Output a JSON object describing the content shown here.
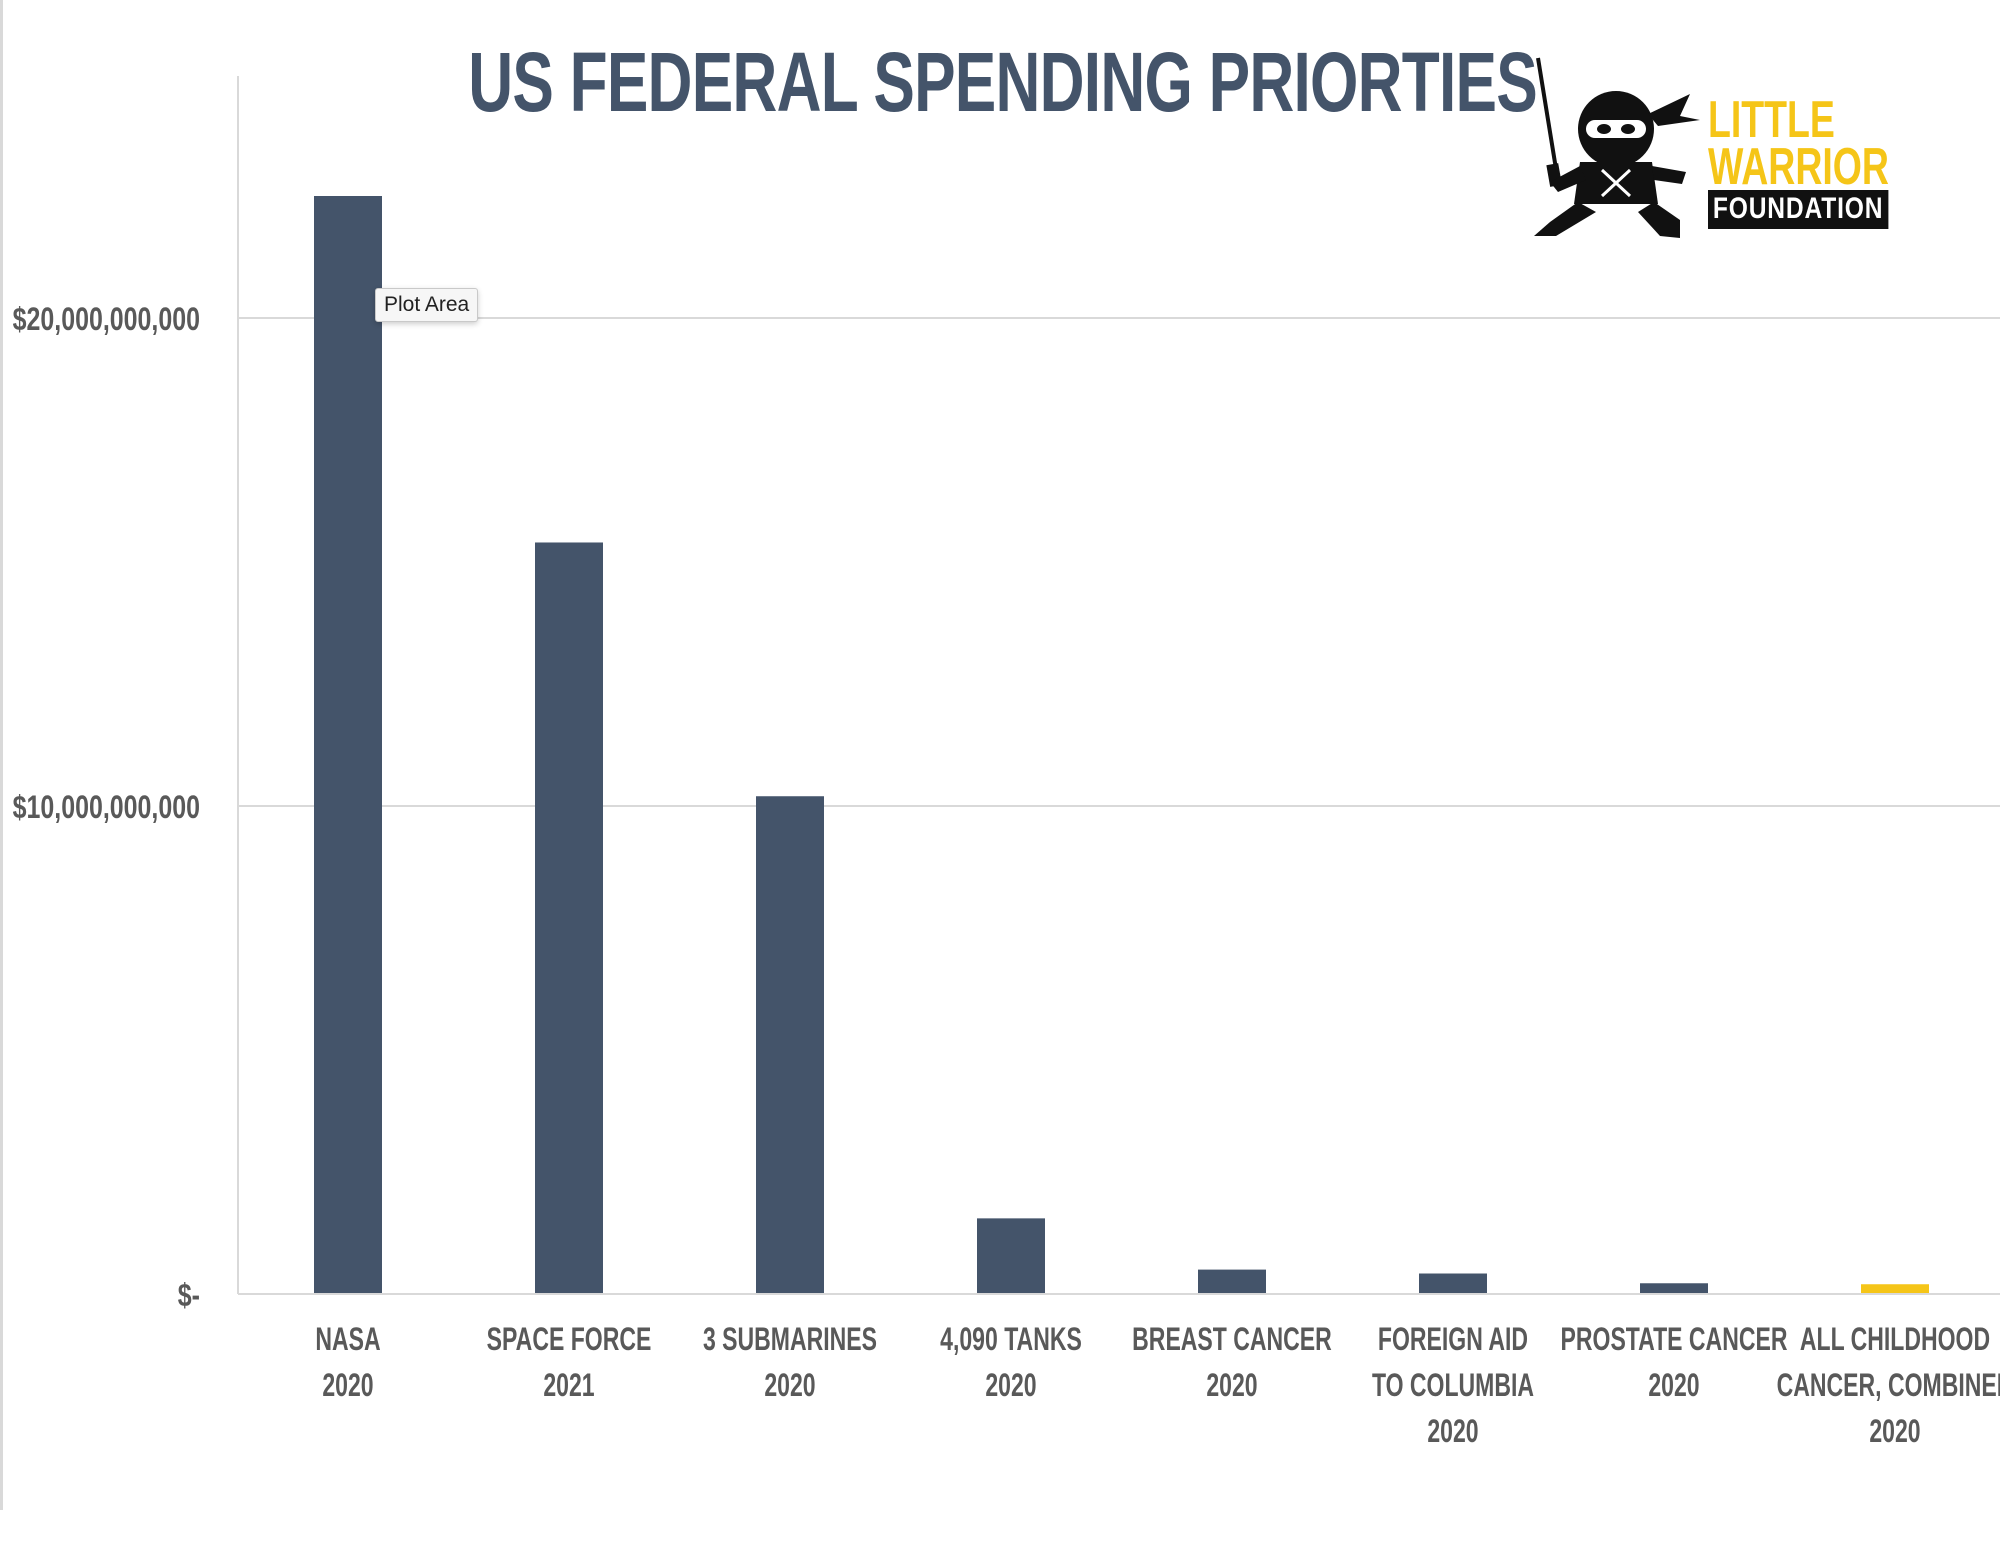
{
  "chart_data": {
    "type": "bar",
    "title": "US FEDERAL SPENDING PRIORTIES",
    "categories": [
      [
        "NASA",
        "2020"
      ],
      [
        "SPACE FORCE",
        "2021"
      ],
      [
        "3 SUBMARINES",
        "2020"
      ],
      [
        "4,090 TANKS",
        "2020"
      ],
      [
        "BREAST CANCER",
        "2020"
      ],
      [
        "FOREIGN AID",
        "TO COLUMBIA",
        "2020"
      ],
      [
        "PROSTATE CANCER",
        "2020"
      ],
      [
        "ALL CHILDHOOD",
        "CANCER, COMBINED",
        "2020"
      ]
    ],
    "values": [
      22500000000,
      15400000000,
      10200000000,
      1550000000,
      500000000,
      420000000,
      220000000,
      200000000
    ],
    "bar_colors": [
      "#44546a",
      "#44546a",
      "#44546a",
      "#44546a",
      "#44546a",
      "#44546a",
      "#44546a",
      "#f5c518"
    ],
    "ylim": [
      0,
      25000000000
    ],
    "yticks": [
      {
        "value": 0,
        "label": "$-"
      },
      {
        "value": 10000000000,
        "label": "$10,000,000,000"
      },
      {
        "value": 20000000000,
        "label": "$20,000,000,000"
      }
    ],
    "grid": true,
    "xlabel": "",
    "ylabel": ""
  },
  "tooltip": {
    "text": "Plot Area"
  },
  "logo": {
    "line1": "LITTLE",
    "line2": "WARRIOR",
    "line3": "FOUNDATION"
  },
  "colors": {
    "bar": "#44546a",
    "highlight": "#f5c518",
    "axis_text": "#595959",
    "gridline": "#d9d9d9"
  }
}
